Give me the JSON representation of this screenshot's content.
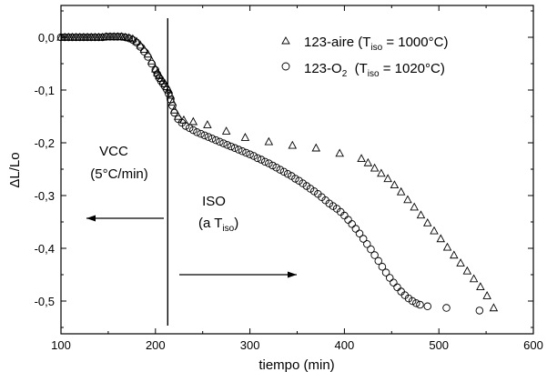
{
  "chart_data": {
    "type": "scatter",
    "xlabel": "tiempo  (min)",
    "ylabel": "ΔL/Lo",
    "xlim": [
      100,
      600
    ],
    "ylim": [
      -0.55,
      0.05
    ],
    "xticks": [
      100,
      200,
      300,
      400,
      500,
      600
    ],
    "xtick_labels": [
      "100",
      "200",
      "300",
      "400",
      "500",
      "600"
    ],
    "yticks": [
      0.0,
      -0.1,
      -0.2,
      -0.3,
      -0.4,
      -0.5
    ],
    "ytick_labels": [
      "0,0",
      "-0,1",
      "-0,2",
      "-0,3",
      "-0,4",
      "-0,5"
    ],
    "legend_position": "top-right",
    "series": [
      {
        "name": "123-aire (T iso = 1000°C)",
        "legend": {
          "main": "123-aire (T",
          "sub": "iso",
          "rest": " = 1000°C)"
        },
        "marker": "triangle",
        "x": [
          100,
          104,
          108,
          112,
          116,
          120,
          124,
          128,
          132,
          136,
          140,
          144,
          148,
          152,
          156,
          160,
          164,
          168,
          172,
          176,
          180,
          184,
          188,
          192,
          196,
          200,
          202,
          204,
          206,
          208,
          210,
          212,
          214,
          216,
          218,
          220,
          224,
          230,
          240,
          255,
          275,
          295,
          320,
          345,
          370,
          395,
          418,
          425,
          432,
          439,
          446,
          453,
          460,
          467,
          474,
          481,
          488,
          495,
          502,
          509,
          516,
          523,
          530,
          537,
          544,
          551,
          558
        ],
        "y": [
          0.0,
          0.0,
          0.0,
          0.0,
          0.0,
          0.0,
          0.0,
          0.0,
          0.0,
          0.0,
          0.0,
          0.0,
          0.001,
          0.001,
          0.001,
          0.001,
          0.001,
          0.0,
          -0.001,
          -0.003,
          -0.008,
          -0.015,
          -0.023,
          -0.032,
          -0.045,
          -0.06,
          -0.067,
          -0.073,
          -0.078,
          -0.083,
          -0.088,
          -0.094,
          -0.1,
          -0.11,
          -0.123,
          -0.138,
          -0.15,
          -0.157,
          -0.16,
          -0.166,
          -0.178,
          -0.19,
          -0.198,
          -0.205,
          -0.21,
          -0.22,
          -0.23,
          -0.238,
          -0.248,
          -0.258,
          -0.268,
          -0.28,
          -0.293,
          -0.308,
          -0.322,
          -0.337,
          -0.352,
          -0.367,
          -0.382,
          -0.398,
          -0.413,
          -0.428,
          -0.443,
          -0.458,
          -0.473,
          -0.49,
          -0.513
        ]
      },
      {
        "name": "123-O2 (T iso = 1020°C)",
        "legend": {
          "main": "123-O",
          "sub2": "2",
          "mid": "  (T",
          "sub": "iso",
          "rest": " = 1020°C)"
        },
        "marker": "circle",
        "x": [
          100,
          104,
          108,
          112,
          116,
          120,
          124,
          128,
          132,
          136,
          140,
          144,
          148,
          152,
          156,
          160,
          164,
          168,
          172,
          176,
          180,
          184,
          188,
          192,
          196,
          200,
          202,
          204,
          206,
          208,
          210,
          212,
          214,
          216,
          218,
          220,
          224,
          228,
          232,
          236,
          240,
          244,
          248,
          252,
          256,
          260,
          264,
          268,
          272,
          276,
          280,
          284,
          288,
          292,
          296,
          300,
          304,
          308,
          312,
          316,
          320,
          324,
          328,
          332,
          336,
          340,
          344,
          348,
          352,
          356,
          360,
          364,
          368,
          372,
          376,
          380,
          384,
          388,
          392,
          396,
          400,
          404,
          408,
          412,
          416,
          420,
          424,
          428,
          432,
          436,
          440,
          444,
          448,
          452,
          456,
          460,
          464,
          468,
          472,
          476,
          480,
          488,
          508,
          543
        ],
        "y": [
          0.0,
          0.0,
          0.0,
          0.0,
          0.0,
          0.0,
          0.0,
          0.0,
          0.0,
          0.0,
          0.0,
          0.0,
          0.001,
          0.001,
          0.001,
          0.001,
          0.001,
          0.0,
          -0.002,
          -0.005,
          -0.01,
          -0.018,
          -0.027,
          -0.037,
          -0.05,
          -0.062,
          -0.07,
          -0.077,
          -0.083,
          -0.088,
          -0.093,
          -0.099,
          -0.107,
          -0.118,
          -0.13,
          -0.143,
          -0.155,
          -0.162,
          -0.168,
          -0.172,
          -0.176,
          -0.18,
          -0.183,
          -0.186,
          -0.189,
          -0.192,
          -0.195,
          -0.198,
          -0.201,
          -0.204,
          -0.207,
          -0.21,
          -0.213,
          -0.216,
          -0.219,
          -0.222,
          -0.225,
          -0.229,
          -0.232,
          -0.236,
          -0.239,
          -0.243,
          -0.247,
          -0.251,
          -0.255,
          -0.259,
          -0.263,
          -0.268,
          -0.272,
          -0.277,
          -0.282,
          -0.287,
          -0.292,
          -0.297,
          -0.303,
          -0.309,
          -0.315,
          -0.32,
          -0.325,
          -0.331,
          -0.338,
          -0.346,
          -0.354,
          -0.363,
          -0.372,
          -0.382,
          -0.392,
          -0.402,
          -0.413,
          -0.424,
          -0.435,
          -0.446,
          -0.456,
          -0.465,
          -0.474,
          -0.482,
          -0.489,
          -0.495,
          -0.5,
          -0.504,
          -0.507,
          -0.51,
          -0.513,
          -0.518
        ]
      }
    ],
    "vline_x": 213,
    "annotations": {
      "vcc_line1": "VCC",
      "vcc_line2": "(5°C/min)",
      "iso_line1": "ISO",
      "iso_line2_pre": "(a T",
      "iso_line2_sub": "iso",
      "iso_line2_post": ")"
    }
  }
}
